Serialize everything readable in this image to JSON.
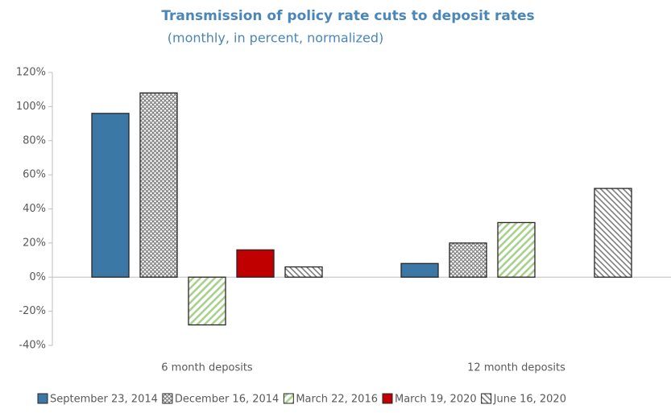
{
  "chart_data": {
    "type": "bar",
    "title": "Transmission of policy rate cuts to deposit rates",
    "subtitle": "(monthly, in percent, normalized)",
    "categories": [
      "6 month deposits",
      "12 month deposits"
    ],
    "series": [
      {
        "name": "September 23, 2014",
        "color": "#3b78a6",
        "values": [
          96,
          8
        ]
      },
      {
        "name": "December 16, 2014",
        "color": "#7f7f7f",
        "values": [
          108,
          20
        ]
      },
      {
        "name": "March 22, 2016",
        "color": "#a9d18e",
        "values": [
          -28,
          32
        ]
      },
      {
        "name": "March 19, 2020",
        "color": "#c00000",
        "values": [
          16,
          null
        ]
      },
      {
        "name": "June 16, 2020",
        "color": "#7f7f7f",
        "values": [
          6,
          52
        ]
      }
    ],
    "ylim": [
      -40,
      120
    ],
    "yticks": [
      {
        "value": -40,
        "label": "-40%"
      },
      {
        "value": -20,
        "label": "-20%"
      },
      {
        "value": 0,
        "label": "0%"
      },
      {
        "value": 20,
        "label": "20%"
      },
      {
        "value": 40,
        "label": "40%"
      },
      {
        "value": 60,
        "label": "60%"
      },
      {
        "value": 80,
        "label": "80%"
      },
      {
        "value": 100,
        "label": "100%"
      },
      {
        "value": 120,
        "label": "120%"
      }
    ],
    "grid": false
  }
}
